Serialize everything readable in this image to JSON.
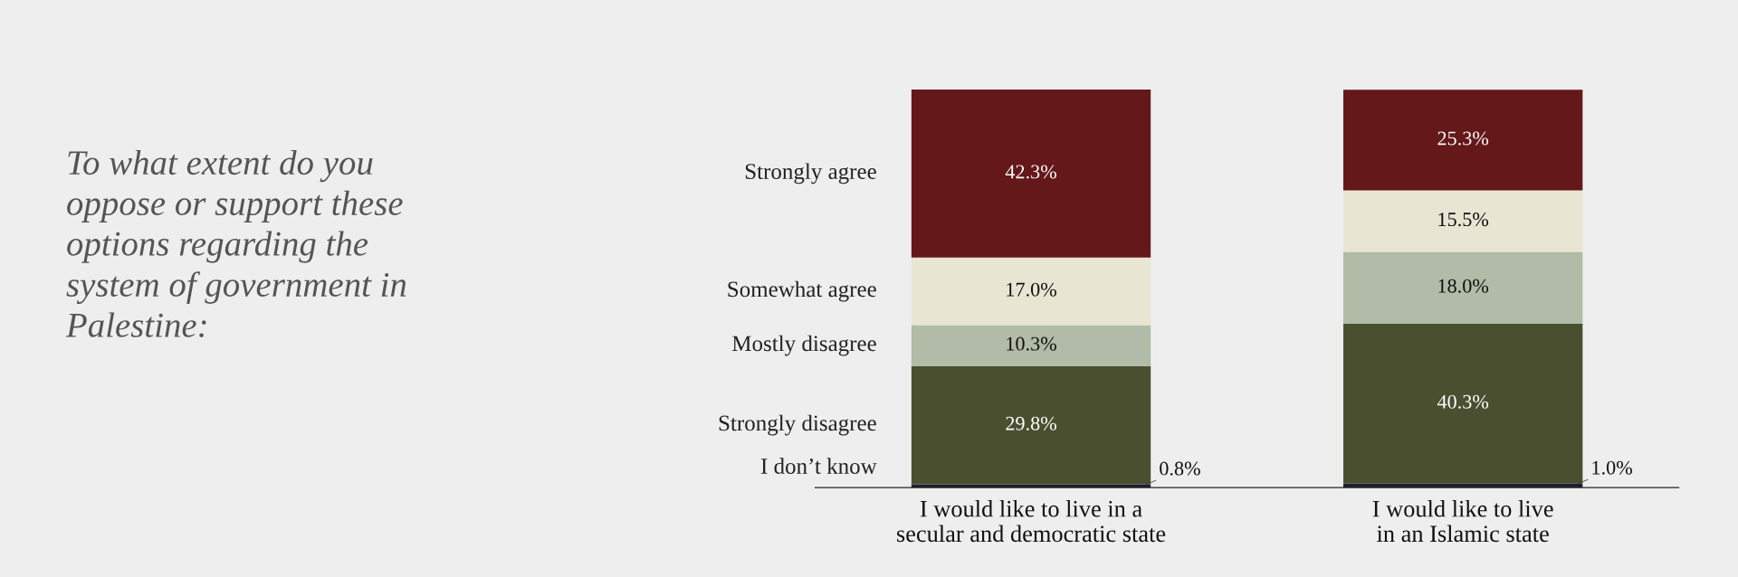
{
  "chart_data": {
    "type": "bar",
    "stacked": true,
    "title": "To what extent do you\noppose or support these\noptions regarding the\nsystem of government in\nPalestine:",
    "categories": [
      "I would like to live in a\nsecular and democratic state",
      "I would like to live\nin an Islamic state"
    ],
    "series": [
      {
        "name": "I don’t know",
        "color": "#1c1f35",
        "values": [
          0.8,
          1.0
        ],
        "value_labels": [
          "0.8%",
          "1.0%"
        ]
      },
      {
        "name": "Strongly disagree",
        "color": "#4a502f",
        "values": [
          29.8,
          40.3
        ],
        "value_labels": [
          "29.8%",
          "40.3%"
        ]
      },
      {
        "name": "Mostly disagree",
        "color": "#b1bba7",
        "values": [
          10.3,
          18.0
        ],
        "value_labels": [
          "10.3%",
          "18.0%"
        ]
      },
      {
        "name": "Somewhat agree",
        "color": "#e8e6d2",
        "values": [
          17.0,
          15.5
        ],
        "value_labels": [
          "17.0%",
          "15.5%"
        ]
      },
      {
        "name": "Strongly agree",
        "color": "#64181a",
        "values": [
          42.3,
          25.3
        ],
        "value_labels": [
          "42.3%",
          "25.3%"
        ]
      }
    ],
    "legend": "left"
  }
}
